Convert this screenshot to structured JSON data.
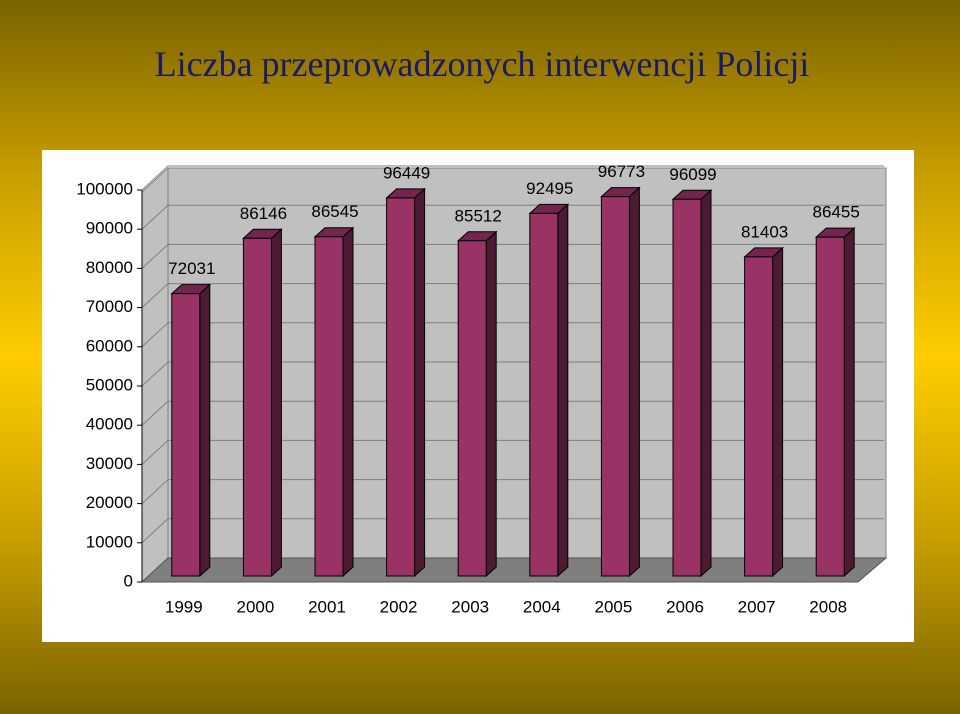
{
  "chart_data": {
    "type": "bar3d",
    "title": "Liczba przeprowadzonych interwencji Policji",
    "categories": [
      "1999",
      "2000",
      "2001",
      "2002",
      "2003",
      "2004",
      "2005",
      "2006",
      "2007",
      "2008"
    ],
    "values": [
      72031,
      86146,
      86545,
      96449,
      85512,
      92495,
      96773,
      96099,
      81403,
      86455
    ],
    "color": "#993366",
    "ylim": [
      0,
      100000
    ],
    "yticks": [
      0,
      10000,
      20000,
      30000,
      40000,
      50000,
      60000,
      70000,
      80000,
      90000,
      100000
    ],
    "grid": true
  }
}
